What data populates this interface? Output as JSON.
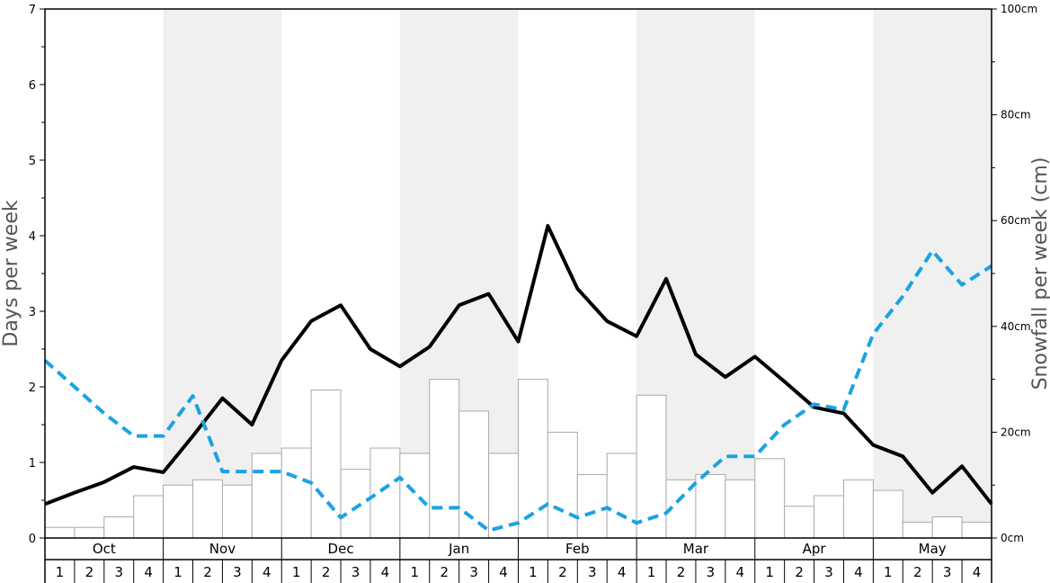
{
  "chart_data": {
    "type": "bar+line",
    "y_left": {
      "label": "Days per week",
      "range": [
        0,
        7
      ],
      "ticks": [
        "0",
        "1",
        "2",
        "3",
        "4",
        "5",
        "6",
        "7"
      ]
    },
    "y_right": {
      "label": "Snowfall per week (cm)",
      "range": [
        0,
        100
      ],
      "ticks": [
        "0cm",
        "20cm",
        "40cm",
        "60cm",
        "80cm",
        "100cm"
      ]
    },
    "months": [
      "Oct",
      "Nov",
      "Dec",
      "Jan",
      "Feb",
      "Mar",
      "Apr",
      "May"
    ],
    "weeks": [
      "1",
      "2",
      "3",
      "4"
    ],
    "series": [
      {
        "style": "bar",
        "axis": "right",
        "color": "#ffffff",
        "values": [
          2,
          2,
          4,
          8,
          10,
          11,
          10,
          16,
          17,
          28,
          13,
          17,
          16,
          30,
          24,
          16,
          30,
          20,
          12,
          16,
          27,
          11,
          12,
          11,
          15,
          6,
          8,
          11,
          9,
          3,
          4,
          3
        ]
      },
      {
        "style": "solid-line",
        "axis": "left",
        "color": "#000000",
        "values": [
          0.45,
          0.6,
          0.74,
          0.94,
          0.87,
          1.35,
          1.85,
          1.5,
          2.35,
          2.87,
          3.08,
          2.5,
          2.27,
          2.53,
          3.08,
          3.23,
          2.6,
          4.13,
          3.3,
          2.87,
          2.67,
          3.43,
          2.43,
          2.13,
          2.4,
          2.07,
          1.73,
          1.65,
          1.23,
          1.08,
          0.6,
          0.95,
          0.45
        ]
      },
      {
        "style": "dashed-line",
        "axis": "left",
        "color": "#1aa3e0",
        "values": [
          2.35,
          2.0,
          1.65,
          1.35,
          1.35,
          1.88,
          0.88,
          0.88,
          0.88,
          0.73,
          0.27,
          0.53,
          0.8,
          0.4,
          0.4,
          0.1,
          0.2,
          0.45,
          0.27,
          0.4,
          0.2,
          0.33,
          0.73,
          1.08,
          1.08,
          1.5,
          1.77,
          1.7,
          2.7,
          3.2,
          3.8,
          3.35,
          3.6
        ]
      }
    ],
    "background_shading": [
      "Nov",
      "Jan",
      "Mar",
      "May"
    ],
    "shade_color": "#f0f0f0",
    "grid": false
  }
}
